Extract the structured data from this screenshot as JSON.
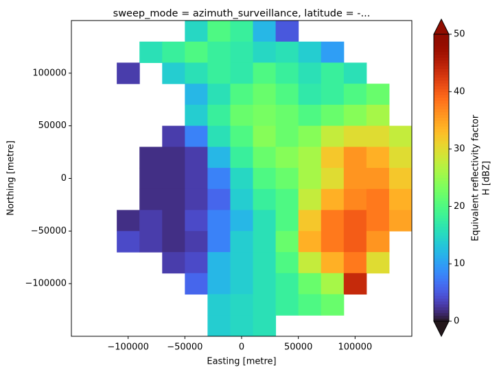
{
  "chart_data": {
    "type": "heatmap",
    "title": "sweep_mode = azimuth_surveillance, latitude = -...",
    "xlabel": "Easting [metre]",
    "ylabel": "Northing [metre]",
    "xlim": [
      -150000,
      150000
    ],
    "ylim": [
      -150000,
      150000
    ],
    "xticks": [
      {
        "value": -100000,
        "label": "−100000"
      },
      {
        "value": -50000,
        "label": "−50000"
      },
      0,
      50000,
      100000
    ],
    "yticks": [
      {
        "value": -100000,
        "label": "−100000"
      },
      {
        "value": -50000,
        "label": "−50000"
      },
      0,
      50000,
      100000
    ],
    "x": [
      -140000,
      -120000,
      -100000,
      -80000,
      -60000,
      -40000,
      -20000,
      0,
      20000,
      40000,
      60000,
      80000,
      100000,
      120000,
      140000
    ],
    "y": [
      140000,
      120000,
      100000,
      80000,
      60000,
      40000,
      20000,
      0,
      -20000,
      -40000,
      -60000,
      -80000,
      -100000,
      -120000,
      -140000
    ],
    "z": [
      [
        null,
        null,
        null,
        null,
        null,
        15,
        20,
        18,
        12,
        5,
        null,
        null,
        null,
        null,
        null
      ],
      [
        null,
        null,
        null,
        16,
        18,
        20,
        18,
        17,
        15,
        16,
        14,
        10,
        null,
        null,
        null
      ],
      [
        null,
        null,
        3,
        null,
        14,
        16,
        18,
        17,
        20,
        18,
        16,
        18,
        16,
        null,
        null
      ],
      [
        null,
        null,
        null,
        null,
        null,
        12,
        16,
        20,
        22,
        20,
        17,
        18,
        20,
        22,
        null
      ],
      [
        null,
        null,
        null,
        null,
        null,
        14,
        18,
        22,
        23,
        22,
        20,
        22,
        24,
        26,
        null
      ],
      [
        null,
        null,
        null,
        null,
        3,
        8,
        16,
        20,
        24,
        22,
        24,
        28,
        30,
        30,
        28
      ],
      [
        null,
        null,
        null,
        2,
        2,
        3,
        12,
        18,
        22,
        24,
        26,
        32,
        36,
        34,
        30
      ],
      [
        null,
        null,
        null,
        2,
        2,
        3,
        8,
        15,
        20,
        22,
        26,
        30,
        36,
        36,
        32
      ],
      [
        null,
        null,
        null,
        2,
        2,
        3,
        6,
        14,
        18,
        20,
        28,
        34,
        37,
        38,
        34
      ],
      [
        null,
        null,
        2,
        3,
        2,
        4,
        8,
        12,
        16,
        20,
        32,
        38,
        40,
        38,
        35
      ],
      [
        null,
        null,
        4,
        3,
        2,
        3,
        8,
        14,
        16,
        22,
        34,
        38,
        40,
        36,
        null
      ],
      [
        null,
        null,
        null,
        null,
        3,
        4,
        12,
        14,
        16,
        20,
        28,
        34,
        38,
        30,
        null
      ],
      [
        null,
        null,
        null,
        null,
        null,
        6,
        12,
        14,
        16,
        18,
        22,
        26,
        44,
        null,
        null
      ],
      [
        null,
        null,
        null,
        null,
        null,
        null,
        14,
        15,
        16,
        18,
        20,
        22,
        null,
        null,
        null
      ],
      [
        null,
        null,
        null,
        null,
        null,
        null,
        14,
        15,
        16,
        null,
        null,
        null,
        null,
        null,
        null
      ]
    ],
    "colorbar": {
      "label": [
        "Equivalent reflectivity factor",
        "H [dBZ]"
      ],
      "lim": [
        0,
        50
      ],
      "ticks": [
        0,
        10,
        20,
        30,
        40,
        50
      ],
      "colormap": "turbo",
      "extend": "both"
    }
  }
}
